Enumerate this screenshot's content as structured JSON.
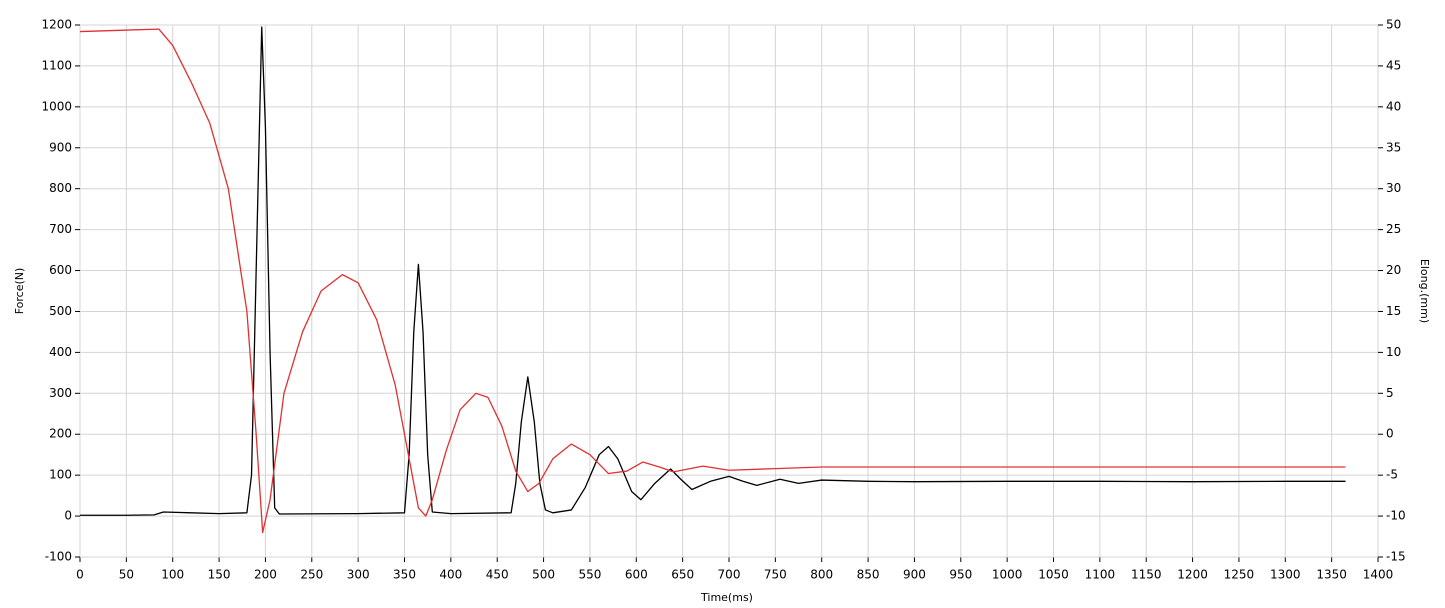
{
  "chart_data": {
    "type": "line",
    "x_label": "Time(ms)",
    "y_label": "Force(N)",
    "y2_label": "Elong.(mm)",
    "xlim": [
      0,
      1400
    ],
    "xticks": [
      0,
      50,
      100,
      150,
      200,
      250,
      300,
      350,
      400,
      450,
      500,
      550,
      600,
      650,
      700,
      750,
      800,
      850,
      900,
      950,
      1000,
      1050,
      1100,
      1150,
      1200,
      1250,
      1300,
      1350,
      1400
    ],
    "ylim": [
      -100,
      1200
    ],
    "yticks": [
      -100,
      0,
      100,
      200,
      300,
      400,
      500,
      600,
      700,
      800,
      900,
      1000,
      1100,
      1200
    ],
    "y2lim": [
      -15,
      50
    ],
    "y2ticks": [
      -15,
      -10,
      -5,
      0,
      5,
      10,
      15,
      20,
      25,
      30,
      35,
      40,
      45,
      50
    ],
    "grid": true,
    "series": [
      {
        "color": "#000000",
        "axis": "y",
        "x": [
          0,
          50,
          80,
          90,
          120,
          150,
          180,
          185,
          190,
          196,
          200,
          205,
          210,
          215,
          300,
          350,
          355,
          360,
          365,
          370,
          375,
          380,
          400,
          465,
          470,
          476,
          483,
          490,
          496,
          502,
          510,
          530,
          545,
          560,
          570,
          580,
          595,
          605,
          620,
          637,
          648,
          660,
          680,
          700,
          715,
          730,
          755,
          775,
          800,
          850,
          900,
          1000,
          1100,
          1200,
          1300,
          1365
        ],
        "values": [
          2,
          2,
          3,
          10,
          8,
          6,
          8,
          100,
          600,
          1195,
          950,
          400,
          20,
          5,
          6,
          8,
          150,
          450,
          615,
          450,
          150,
          10,
          6,
          8,
          80,
          230,
          340,
          230,
          80,
          15,
          8,
          15,
          70,
          150,
          170,
          140,
          60,
          40,
          80,
          115,
          90,
          65,
          85,
          97,
          85,
          75,
          90,
          80,
          88,
          85,
          84,
          85,
          85,
          84,
          85,
          85
        ]
      },
      {
        "color": "#e03030",
        "axis": "y2",
        "x": [
          0,
          85,
          100,
          120,
          140,
          160,
          180,
          190,
          197,
          205,
          220,
          240,
          260,
          283,
          300,
          320,
          340,
          355,
          365,
          373,
          380,
          395,
          410,
          427,
          440,
          455,
          470,
          483,
          495,
          510,
          530,
          550,
          570,
          590,
          607,
          625,
          640,
          672,
          700,
          750,
          800,
          1000,
          1365
        ],
        "values": [
          49.2,
          49.5,
          47.5,
          43,
          38,
          30,
          15,
          0,
          -12,
          -8,
          5,
          12.5,
          17.5,
          19.5,
          18.5,
          14,
          6,
          -3,
          -9,
          -10,
          -8,
          -2,
          3,
          5,
          4.5,
          1,
          -4.5,
          -7,
          -6,
          -3,
          -1.2,
          -2.5,
          -4.8,
          -4.5,
          -3.4,
          -4,
          -4.6,
          -3.9,
          -4.4,
          -4.2,
          -4,
          -4,
          -4
        ]
      }
    ]
  }
}
